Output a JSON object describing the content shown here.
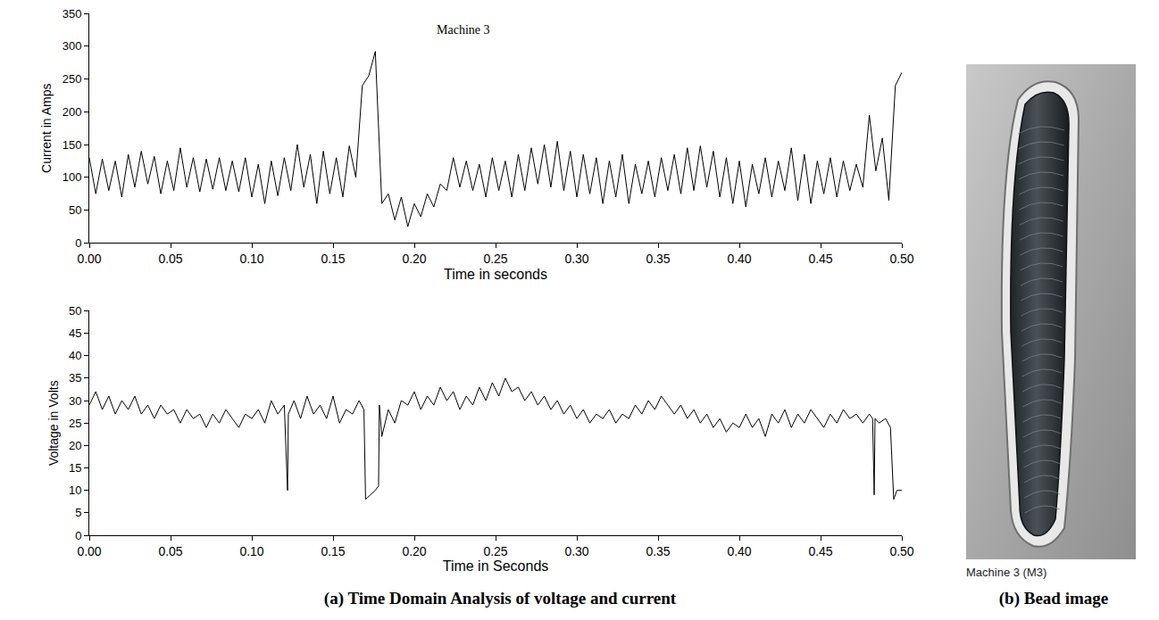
{
  "chart_data": [
    {
      "type": "line",
      "title": "Machine 3",
      "y_label": "Current in Amps",
      "x_label": "Time in seconds",
      "color": "#000000",
      "grid": false,
      "xlim": [
        0,
        0.5
      ],
      "xticks": [
        {
          "value": 0,
          "label": "0.00"
        },
        {
          "value": 0.05,
          "label": "0.05"
        },
        {
          "value": 0.1,
          "label": "0.10"
        },
        {
          "value": 0.15,
          "label": "0.15"
        },
        {
          "value": 0.2,
          "label": "0.20"
        },
        {
          "value": 0.25,
          "label": "0.25"
        },
        {
          "value": 0.3,
          "label": "0.30"
        },
        {
          "value": 0.35,
          "label": "0.35"
        },
        {
          "value": 0.4,
          "label": "0.40"
        },
        {
          "value": 0.45,
          "label": "0.45"
        },
        {
          "value": 0.5,
          "label": "0.50"
        }
      ],
      "ylim": [
        0,
        350
      ],
      "yticks": [
        0,
        50,
        100,
        150,
        200,
        250,
        300,
        350
      ],
      "x": [
        0,
        0.004,
        0.008,
        0.012,
        0.016,
        0.02,
        0.024,
        0.028,
        0.032,
        0.036,
        0.04,
        0.044,
        0.048,
        0.052,
        0.056,
        0.06,
        0.064,
        0.068,
        0.072,
        0.076,
        0.08,
        0.084,
        0.088,
        0.092,
        0.096,
        0.1,
        0.104,
        0.108,
        0.112,
        0.116,
        0.12,
        0.124,
        0.128,
        0.132,
        0.136,
        0.14,
        0.144,
        0.148,
        0.152,
        0.156,
        0.16,
        0.164,
        0.168,
        0.172,
        0.176,
        0.18,
        0.184,
        0.188,
        0.192,
        0.196,
        0.2,
        0.204,
        0.208,
        0.212,
        0.216,
        0.22,
        0.224,
        0.228,
        0.232,
        0.236,
        0.24,
        0.244,
        0.248,
        0.252,
        0.256,
        0.26,
        0.264,
        0.268,
        0.272,
        0.276,
        0.28,
        0.284,
        0.288,
        0.292,
        0.296,
        0.3,
        0.304,
        0.308,
        0.312,
        0.316,
        0.32,
        0.324,
        0.328,
        0.332,
        0.336,
        0.34,
        0.344,
        0.348,
        0.352,
        0.356,
        0.36,
        0.364,
        0.368,
        0.372,
        0.376,
        0.38,
        0.384,
        0.388,
        0.392,
        0.396,
        0.4,
        0.404,
        0.408,
        0.412,
        0.416,
        0.42,
        0.424,
        0.428,
        0.432,
        0.436,
        0.44,
        0.444,
        0.448,
        0.452,
        0.456,
        0.46,
        0.464,
        0.468,
        0.472,
        0.476,
        0.48,
        0.484,
        0.488,
        0.492,
        0.496,
        0.5
      ],
      "values": [
        130,
        75,
        128,
        80,
        125,
        70,
        135,
        85,
        140,
        90,
        132,
        75,
        125,
        80,
        145,
        85,
        130,
        78,
        128,
        82,
        130,
        80,
        125,
        78,
        130,
        70,
        120,
        60,
        125,
        72,
        130,
        80,
        150,
        85,
        135,
        60,
        140,
        75,
        130,
        70,
        148,
        100,
        240,
        255,
        292,
        60,
        75,
        35,
        70,
        25,
        60,
        40,
        75,
        55,
        90,
        80,
        130,
        85,
        125,
        80,
        120,
        70,
        130,
        80,
        125,
        70,
        135,
        80,
        145,
        90,
        150,
        85,
        155,
        80,
        140,
        70,
        135,
        75,
        130,
        60,
        125,
        70,
        135,
        60,
        120,
        75,
        125,
        70,
        130,
        80,
        135,
        75,
        145,
        80,
        148,
        85,
        140,
        70,
        130,
        60,
        125,
        55,
        120,
        75,
        130,
        70,
        125,
        80,
        145,
        65,
        135,
        60,
        125,
        75,
        130,
        70,
        125,
        80,
        120,
        85,
        195,
        110,
        160,
        65,
        240,
        260
      ]
    },
    {
      "type": "line",
      "y_label": "Voltage in Volts",
      "x_label": "Time in Seconds",
      "color": "#000000",
      "grid": false,
      "xlim": [
        0,
        0.5
      ],
      "xticks": [
        {
          "value": 0,
          "label": "0.00"
        },
        {
          "value": 0.05,
          "label": "0.05"
        },
        {
          "value": 0.1,
          "label": "0.10"
        },
        {
          "value": 0.15,
          "label": "0.15"
        },
        {
          "value": 0.2,
          "label": "0.20"
        },
        {
          "value": 0.25,
          "label": "0.25"
        },
        {
          "value": 0.3,
          "label": "0.30"
        },
        {
          "value": 0.35,
          "label": "0.35"
        },
        {
          "value": 0.4,
          "label": "0.40"
        },
        {
          "value": 0.45,
          "label": "0.45"
        },
        {
          "value": 0.5,
          "label": "0.50"
        }
      ],
      "ylim": [
        0,
        50
      ],
      "yticks": [
        0,
        5,
        10,
        15,
        20,
        25,
        30,
        35,
        40,
        45,
        50
      ],
      "x": [
        0,
        0.004,
        0.008,
        0.012,
        0.016,
        0.02,
        0.024,
        0.028,
        0.032,
        0.036,
        0.04,
        0.044,
        0.048,
        0.052,
        0.056,
        0.06,
        0.064,
        0.068,
        0.072,
        0.076,
        0.08,
        0.084,
        0.088,
        0.092,
        0.096,
        0.1,
        0.104,
        0.108,
        0.112,
        0.116,
        0.12,
        0.122,
        0.1225,
        0.126,
        0.13,
        0.134,
        0.138,
        0.142,
        0.146,
        0.15,
        0.154,
        0.158,
        0.162,
        0.166,
        0.169,
        0.17,
        0.173,
        0.176,
        0.178,
        0.1785,
        0.18,
        0.184,
        0.188,
        0.192,
        0.196,
        0.2,
        0.204,
        0.208,
        0.212,
        0.216,
        0.22,
        0.224,
        0.228,
        0.232,
        0.236,
        0.24,
        0.244,
        0.248,
        0.252,
        0.256,
        0.26,
        0.264,
        0.268,
        0.272,
        0.276,
        0.28,
        0.284,
        0.288,
        0.292,
        0.296,
        0.3,
        0.304,
        0.308,
        0.312,
        0.316,
        0.32,
        0.324,
        0.328,
        0.332,
        0.336,
        0.34,
        0.344,
        0.348,
        0.352,
        0.356,
        0.36,
        0.364,
        0.368,
        0.372,
        0.376,
        0.38,
        0.384,
        0.388,
        0.392,
        0.396,
        0.4,
        0.404,
        0.408,
        0.412,
        0.416,
        0.42,
        0.424,
        0.428,
        0.432,
        0.436,
        0.44,
        0.444,
        0.448,
        0.452,
        0.456,
        0.46,
        0.464,
        0.468,
        0.472,
        0.476,
        0.48,
        0.482,
        0.483,
        0.4835,
        0.486,
        0.49,
        0.493,
        0.495,
        0.497,
        0.5
      ],
      "values": [
        29,
        32,
        28,
        31,
        27,
        30,
        28,
        31,
        27,
        29,
        26,
        29,
        27,
        28,
        25,
        28,
        26,
        27,
        24,
        27,
        25,
        28,
        26,
        24,
        27,
        26,
        28,
        25,
        30,
        27,
        29,
        10,
        27,
        30,
        26,
        31,
        27,
        29,
        26,
        31,
        25,
        28,
        27,
        30,
        28,
        8,
        9,
        10,
        11,
        29,
        22,
        28,
        25,
        30,
        29,
        32,
        28,
        31,
        29,
        33,
        30,
        32,
        28,
        31,
        29,
        33,
        30,
        34,
        31,
        35,
        32,
        33,
        30,
        32,
        29,
        31,
        28,
        30,
        27,
        29,
        26,
        28,
        25,
        27,
        26,
        28,
        25,
        27,
        26,
        29,
        27,
        30,
        28,
        31,
        29,
        27,
        29,
        26,
        28,
        25,
        27,
        24,
        26,
        23,
        25,
        24,
        27,
        24,
        26,
        22,
        27,
        25,
        28,
        24,
        27,
        25,
        28,
        26,
        24,
        27,
        25,
        28,
        26,
        27,
        25,
        27,
        26,
        9,
        26,
        25,
        26,
        24,
        8,
        10,
        10
      ]
    }
  ],
  "captions": {
    "a": "(a) Time Domain Analysis of voltage and current",
    "b": "(b) Bead image"
  },
  "bead_image": {
    "label": "Machine 3 (M3)"
  }
}
